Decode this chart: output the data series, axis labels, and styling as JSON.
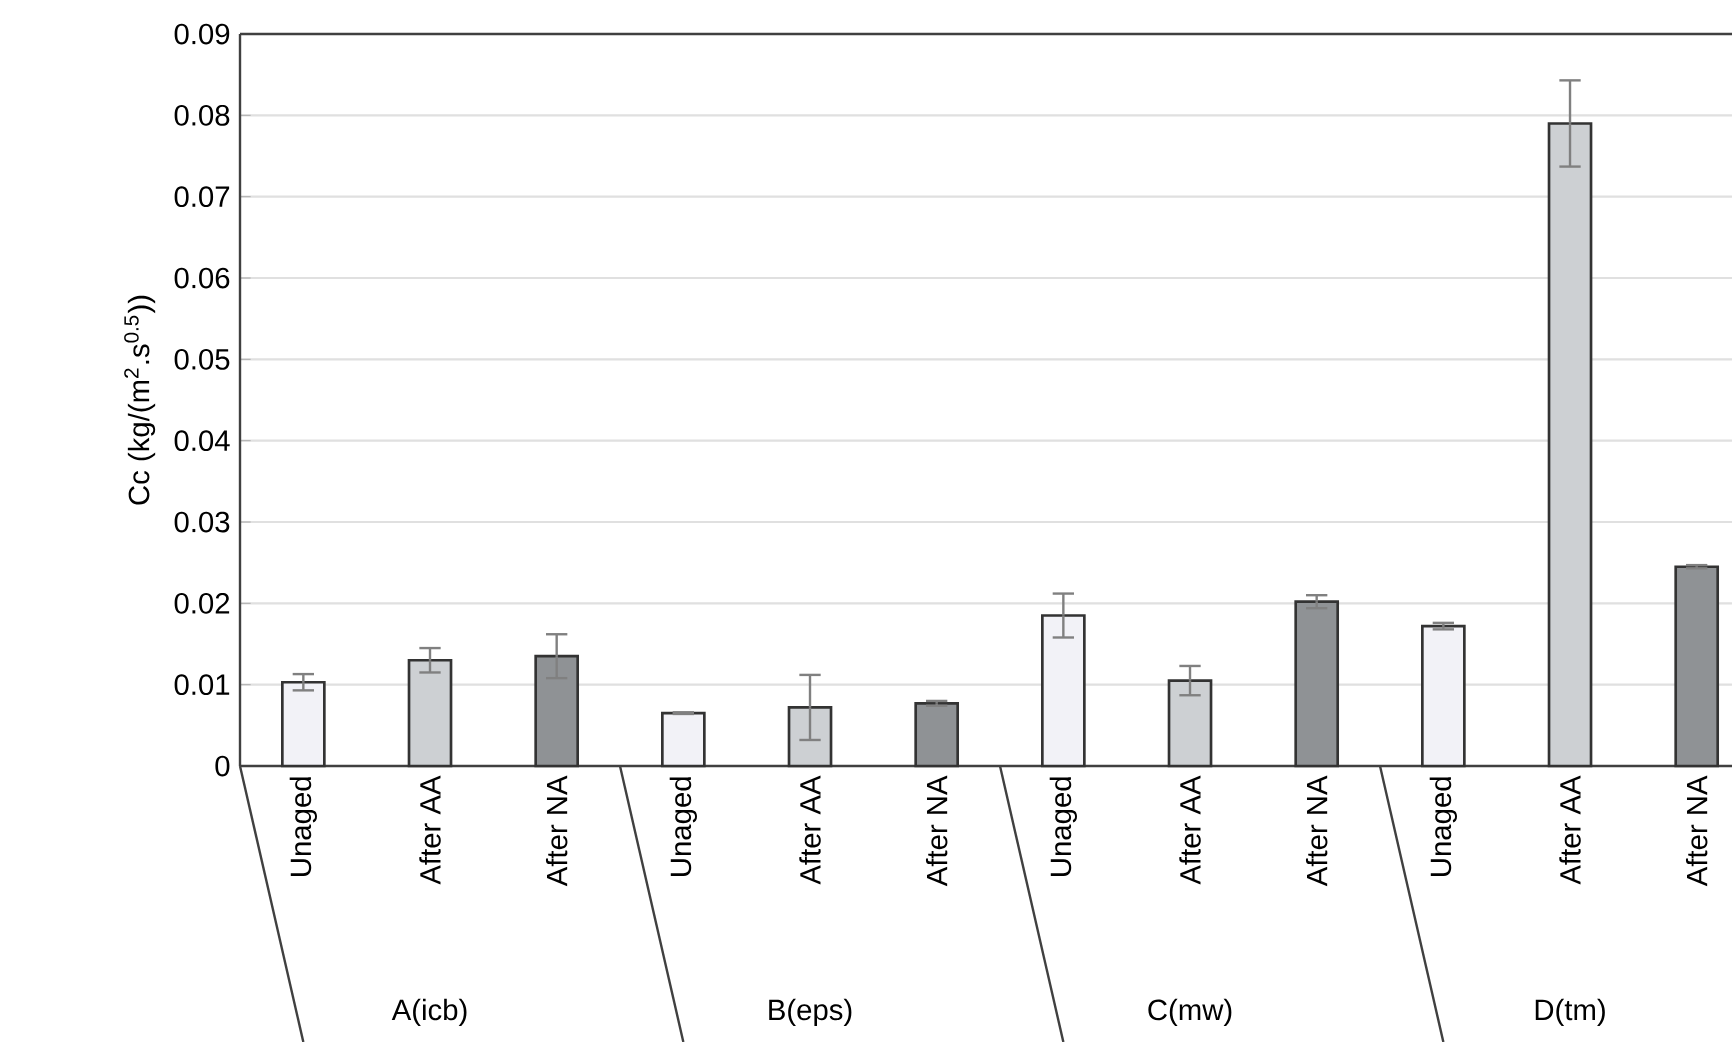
{
  "chart_data": {
    "type": "bar",
    "ylabel": "Cc (kg/(m$^{2}$.s$^{0.5}$))",
    "categories": [
      "Unaged",
      "After AA",
      "After NA",
      "Unaged",
      "After AA",
      "After NA",
      "Unaged",
      "After AA",
      "After NA",
      "Unaged",
      "After AA",
      "After NA"
    ],
    "values": [
      0.0103,
      0.013,
      0.0135,
      0.0065,
      0.0072,
      0.0077,
      0.0185,
      0.0105,
      0.0202,
      0.0172,
      0.079,
      0.0245
    ],
    "errors": [
      0.001,
      0.0015,
      0.0027,
      0.0001,
      0.004,
      0.0003,
      0.0027,
      0.0018,
      0.0008,
      0.0004,
      0.0053,
      0.0002
    ],
    "colors": [
      "#f2f2f7",
      "#cdd0d3",
      "#8f9295",
      "#f2f2f7",
      "#cdd0d3",
      "#8f9295",
      "#f2f2f7",
      "#cdd0d3",
      "#8f9295",
      "#f2f2f7",
      "#cdd0d3",
      "#8f9295"
    ],
    "annotations": [
      "A(icb)",
      "B(eps)",
      "C(mw)",
      "D(tm)"
    ],
    "ylim": [
      0,
      0.09
    ],
    "yticks": [
      0,
      0.01,
      0.02,
      0.03,
      0.04,
      0.05,
      0.06,
      0.07,
      0.08,
      0.09
    ],
    "grid": "y"
  }
}
